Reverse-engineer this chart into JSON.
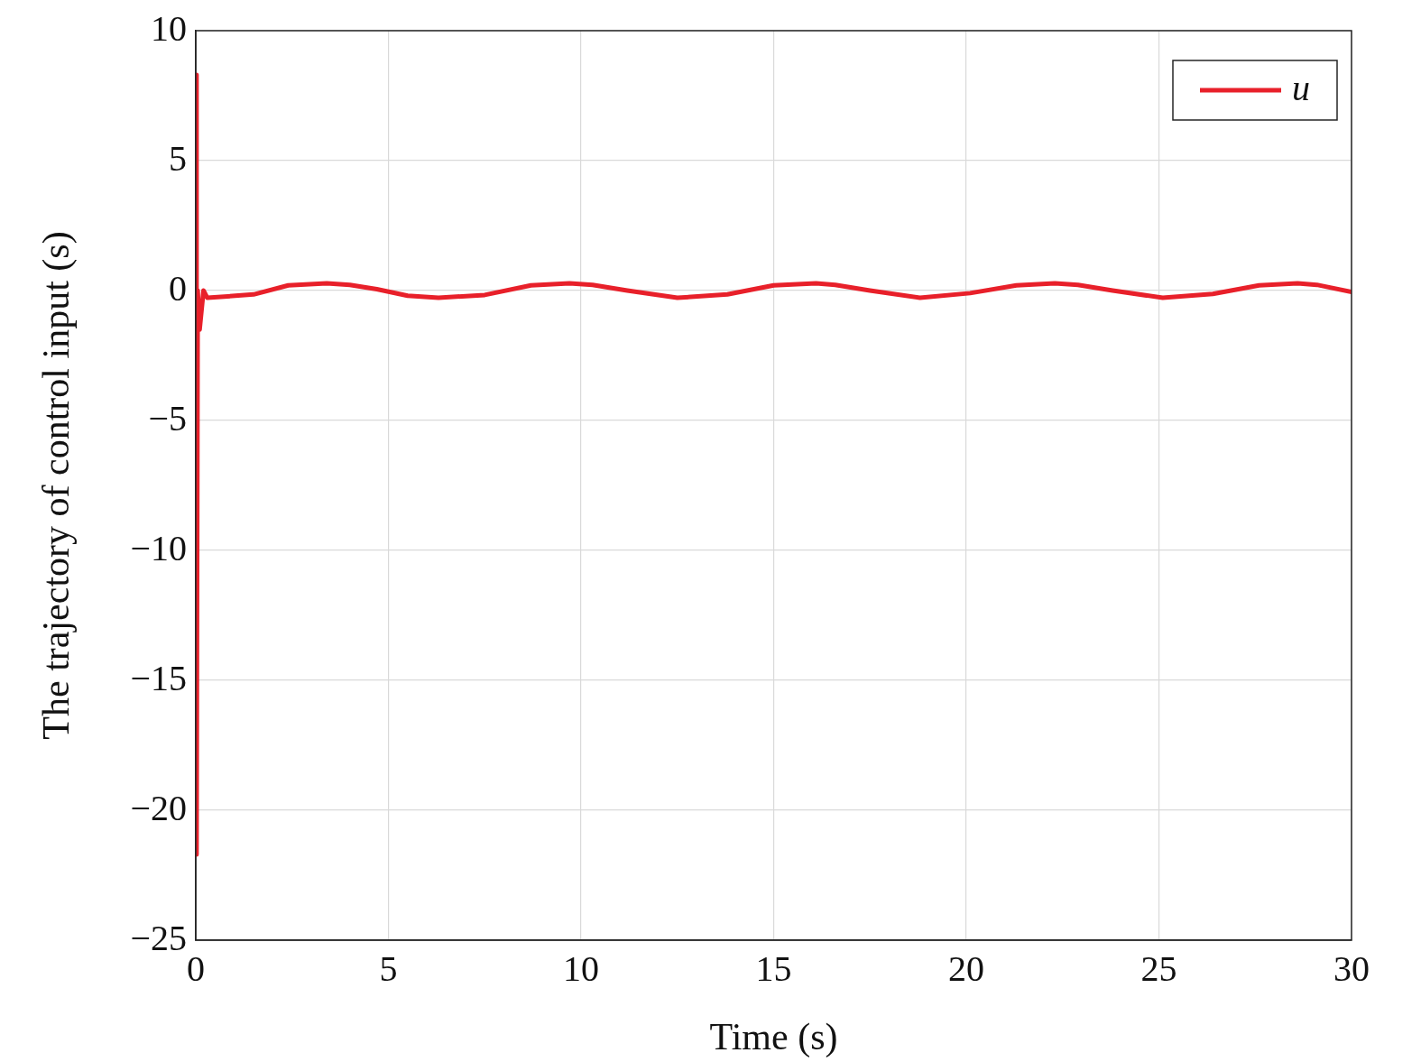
{
  "chart_data": {
    "type": "line",
    "xlabel": "Time (s)",
    "ylabel": "The trajectory of control input (s)",
    "xlim": [
      0,
      30
    ],
    "xticks": [
      0,
      5,
      10,
      15,
      20,
      25,
      30
    ],
    "ylim": [
      -25,
      10
    ],
    "yticks": [
      -25,
      -20,
      -15,
      -10,
      -5,
      0,
      5,
      10
    ],
    "grid": true,
    "legend": "top right",
    "marker": "none",
    "line_style": "solid",
    "series": [
      {
        "name": "u",
        "color": "#e8202a",
        "x": [
          0,
          0.02,
          0.05,
          0.1,
          0.2,
          0.3,
          1.5,
          2.4,
          3.4,
          4.0,
          4.7,
          5.5,
          6.3,
          7.5,
          8.7,
          9.7,
          10.3,
          11.2,
          12.5,
          13.8,
          15,
          16.1,
          16.6,
          17.5,
          18.8,
          20.1,
          21.3,
          22.3,
          22.9,
          23.8,
          25.1,
          26.4,
          27.6,
          28.6,
          29.1,
          30
        ],
        "values": [
          8.3,
          -21.7,
          0,
          -1.5,
          0,
          -0.28,
          -0.15,
          0.2,
          0.28,
          0.22,
          0.05,
          -0.2,
          -0.28,
          -0.17,
          0.2,
          0.28,
          0.22,
          0,
          -0.28,
          -0.15,
          0.2,
          0.28,
          0.22,
          0,
          -0.28,
          -0.1,
          0.2,
          0.28,
          0.22,
          0,
          -0.28,
          -0.13,
          0.2,
          0.28,
          0.22,
          -0.05
        ]
      }
    ]
  }
}
